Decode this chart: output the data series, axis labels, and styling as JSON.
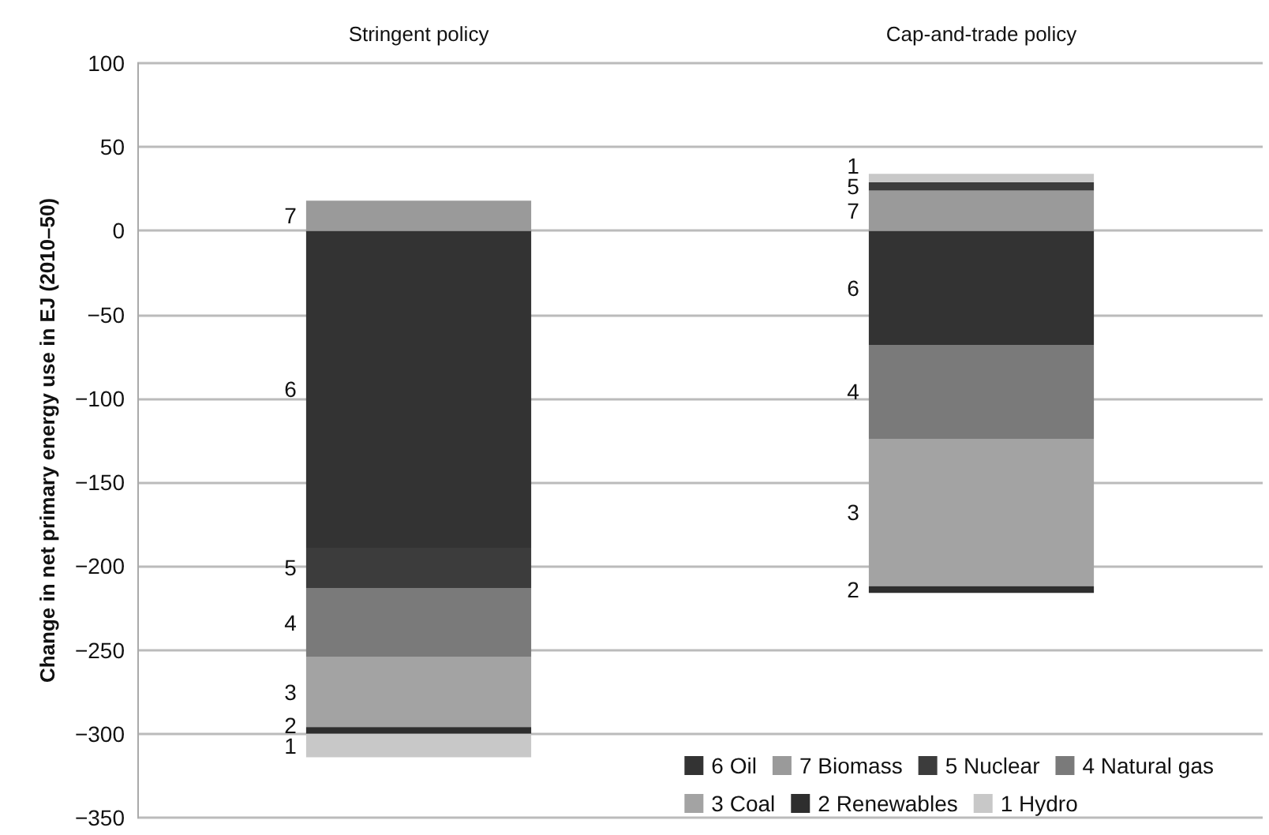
{
  "chart_data": {
    "type": "bar",
    "stacked": true,
    "categories": [
      "Stringent policy",
      "Cap-and-trade policy"
    ],
    "ylabel": "Change in net primary energy use in EJ (2010–50)",
    "ylim": [
      -350,
      100
    ],
    "yticks": [
      -350,
      -300,
      -250,
      -200,
      -150,
      -100,
      -50,
      0,
      50,
      100
    ],
    "grid": "y",
    "legend": "bottom right",
    "series": [
      {
        "name": "6 Oil",
        "color": "#333333",
        "values": [
          -189,
          -68
        ]
      },
      {
        "name": "7 Biomass",
        "color": "#9a9a9a",
        "values": [
          18,
          24
        ]
      },
      {
        "name": "5 Nuclear",
        "color": "#3c3c3c",
        "values": [
          -24,
          5
        ]
      },
      {
        "name": "4 Natural gas",
        "color": "#7a7a7a",
        "values": [
          -41,
          -56
        ]
      },
      {
        "name": "3 Coal",
        "color": "#a3a3a3",
        "values": [
          -42,
          -88
        ]
      },
      {
        "name": "2 Renewables",
        "color": "#2e2e2e",
        "values": [
          -4,
          -4
        ]
      },
      {
        "name": "1 Hydro",
        "color": "#c8c8c8",
        "values": [
          -14,
          5
        ]
      }
    ],
    "annotations": [
      "7",
      "6",
      "5",
      "4",
      "3",
      "2",
      "1",
      "1",
      "5",
      "7",
      "6",
      "4",
      "3",
      "2"
    ]
  }
}
